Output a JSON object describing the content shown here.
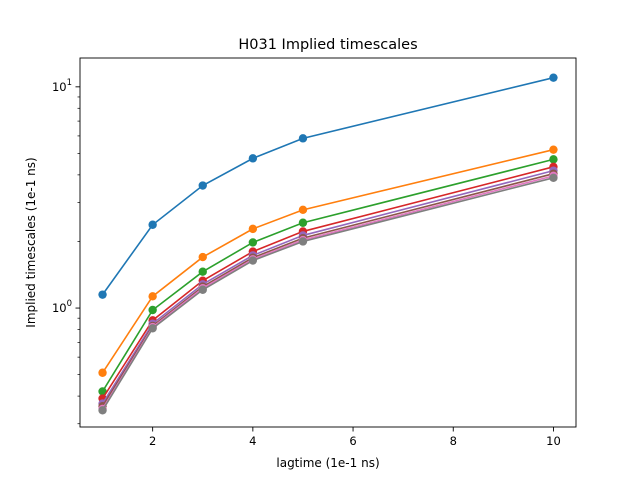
{
  "chart_data": {
    "type": "line",
    "title": "H031 Implied timescales",
    "xlabel": "lagtime (1e-1 ns)",
    "ylabel": "Implied timescales (1e-1 ns)",
    "yscale": "log",
    "xlim": [
      0.55,
      10.45
    ],
    "ylim": [
      0.29,
      13.5
    ],
    "grid": false,
    "legend": "none",
    "x": [
      1,
      2,
      3,
      4,
      5,
      10
    ],
    "x_ticks": [
      {
        "value": 2,
        "label": "2"
      },
      {
        "value": 4,
        "label": "4"
      },
      {
        "value": 6,
        "label": "6"
      },
      {
        "value": 8,
        "label": "8"
      },
      {
        "value": 10,
        "label": "10"
      }
    ],
    "y_ticks": [
      {
        "value": 1,
        "base": "10",
        "exp": "0"
      },
      {
        "value": 10,
        "base": "10",
        "exp": "1"
      }
    ],
    "y_minor_ticks": [
      0.3,
      0.4,
      0.5,
      0.6,
      0.7,
      0.8,
      0.9,
      2,
      3,
      4,
      5,
      6,
      7,
      8,
      9
    ],
    "series": [
      {
        "color": "#1f77b4",
        "values": [
          1.15,
          2.38,
          3.58,
          4.75,
          5.85,
          11.0
        ]
      },
      {
        "color": "#ff7f0e",
        "values": [
          0.51,
          1.13,
          1.7,
          2.28,
          2.78,
          5.2
        ]
      },
      {
        "color": "#2ca02c",
        "values": [
          0.42,
          0.98,
          1.46,
          1.98,
          2.43,
          4.7
        ]
      },
      {
        "color": "#d62728",
        "values": [
          0.39,
          0.88,
          1.33,
          1.8,
          2.22,
          4.35
        ]
      },
      {
        "color": "#9467bd",
        "values": [
          0.37,
          0.85,
          1.28,
          1.73,
          2.13,
          4.18
        ]
      },
      {
        "color": "#8c564b",
        "values": [
          0.36,
          0.83,
          1.25,
          1.69,
          2.07,
          4.05
        ]
      },
      {
        "color": "#e377c2",
        "values": [
          0.35,
          0.82,
          1.23,
          1.66,
          2.03,
          3.96
        ]
      },
      {
        "color": "#7f7f7f",
        "values": [
          0.345,
          0.81,
          1.21,
          1.64,
          2.0,
          3.88
        ]
      }
    ]
  }
}
